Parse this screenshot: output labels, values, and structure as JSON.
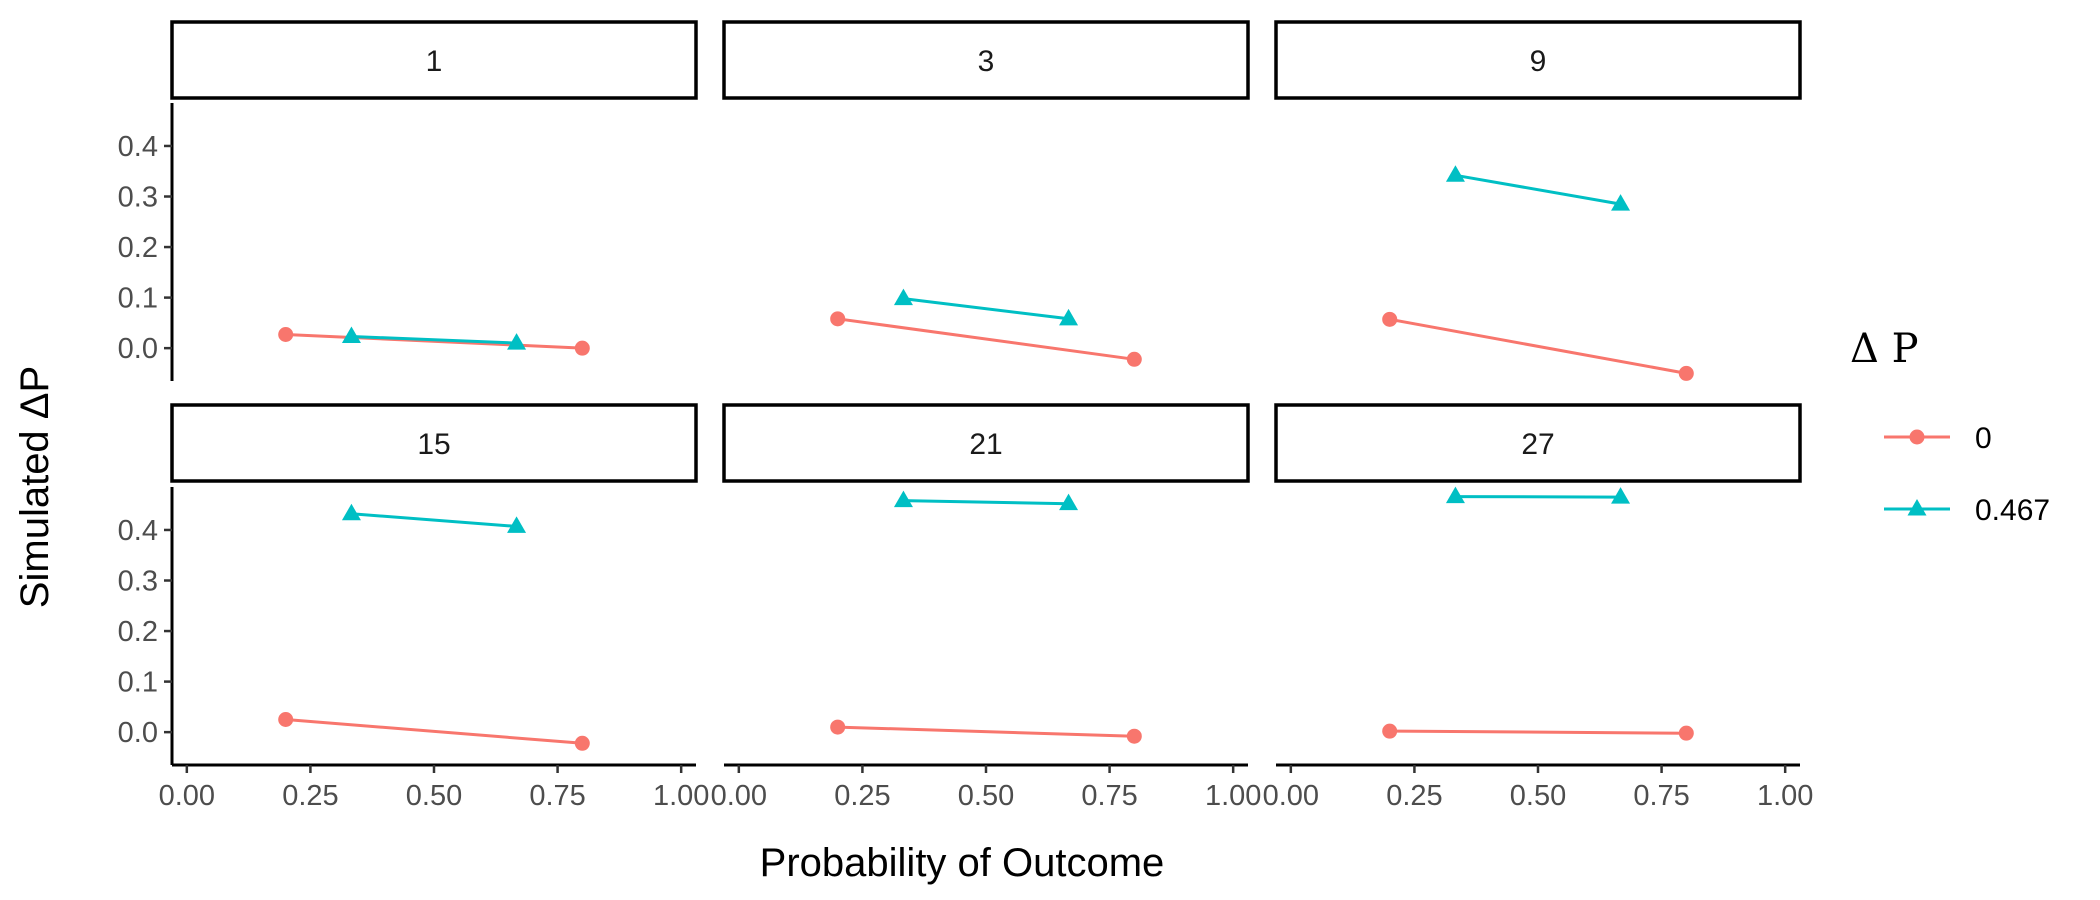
{
  "chart_data": {
    "type": "line",
    "xlabel": "Probability of Outcome",
    "ylabel": "Simulated ΔP",
    "xlim": [
      -0.03,
      1.03
    ],
    "ylim": [
      -0.065,
      0.485
    ],
    "x_ticks": [
      "0.00",
      "0.25",
      "0.50",
      "0.75",
      "1.00"
    ],
    "y_ticks": [
      "0.0",
      "0.1",
      "0.2",
      "0.3",
      "0.4"
    ],
    "x_tick_values": [
      0,
      0.25,
      0.5,
      0.75,
      1.0
    ],
    "y_tick_values": [
      0,
      0.1,
      0.2,
      0.3,
      0.4
    ],
    "legend": {
      "title": "Δ P",
      "placement": "right",
      "entries": [
        {
          "label": "0",
          "color": "#F8766D",
          "shape": "circle"
        },
        {
          "label": "0.467",
          "color": "#00BFC4",
          "shape": "triangle"
        }
      ]
    },
    "panels": [
      {
        "label": "1",
        "series": [
          {
            "name": "0",
            "x": [
              0.2,
              0.8
            ],
            "y": [
              0.027,
              0.0
            ]
          },
          {
            "name": "0.467",
            "x": [
              0.333,
              0.667
            ],
            "y": [
              0.023,
              0.01
            ]
          }
        ]
      },
      {
        "label": "3",
        "series": [
          {
            "name": "0",
            "x": [
              0.2,
              0.8
            ],
            "y": [
              0.058,
              -0.022
            ]
          },
          {
            "name": "0.467",
            "x": [
              0.333,
              0.667
            ],
            "y": [
              0.098,
              0.058
            ]
          }
        ]
      },
      {
        "label": "9",
        "series": [
          {
            "name": "0",
            "x": [
              0.2,
              0.8
            ],
            "y": [
              0.057,
              -0.05
            ]
          },
          {
            "name": "0.467",
            "x": [
              0.333,
              0.667
            ],
            "y": [
              0.342,
              0.285
            ]
          }
        ]
      },
      {
        "label": "15",
        "series": [
          {
            "name": "0",
            "x": [
              0.2,
              0.8
            ],
            "y": [
              0.025,
              -0.022
            ]
          },
          {
            "name": "0.467",
            "x": [
              0.333,
              0.667
            ],
            "y": [
              0.432,
              0.407
            ]
          }
        ]
      },
      {
        "label": "21",
        "series": [
          {
            "name": "0",
            "x": [
              0.2,
              0.8
            ],
            "y": [
              0.01,
              -0.008
            ]
          },
          {
            "name": "0.467",
            "x": [
              0.333,
              0.667
            ],
            "y": [
              0.458,
              0.452
            ]
          }
        ]
      },
      {
        "label": "27",
        "series": [
          {
            "name": "0",
            "x": [
              0.2,
              0.8
            ],
            "y": [
              0.002,
              -0.002
            ]
          },
          {
            "name": "0.467",
            "x": [
              0.333,
              0.667
            ],
            "y": [
              0.466,
              0.465
            ]
          }
        ]
      }
    ]
  }
}
